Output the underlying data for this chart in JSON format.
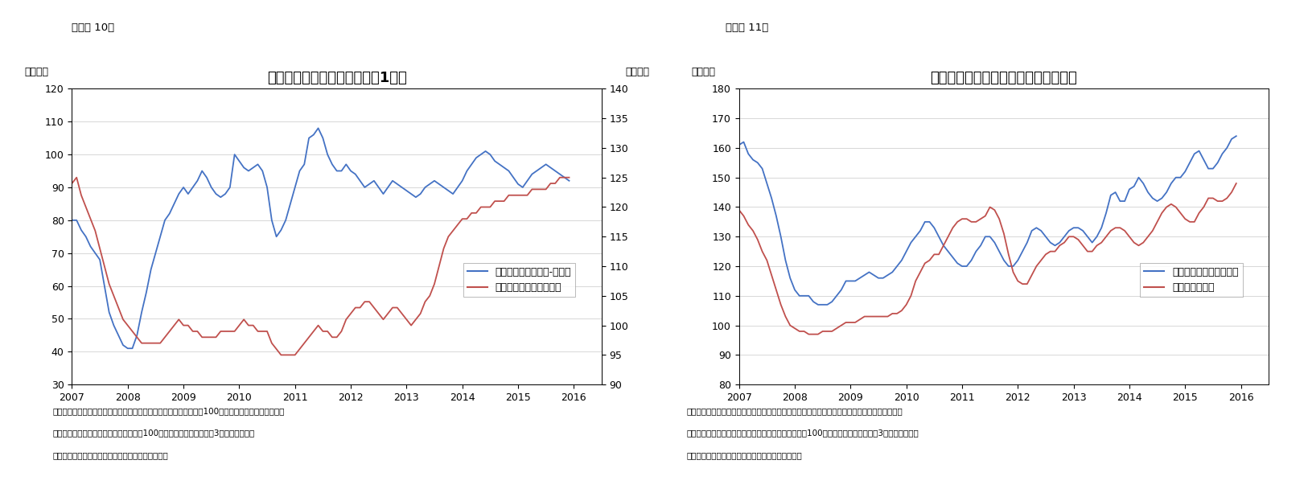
{
  "chart1": {
    "title": "失業者数および家計見通し（1年）",
    "subtitle": "（図表 10）",
    "ylabel_left": "（指数）",
    "ylabel_right": "（指数）",
    "ylim_left": [
      30,
      120
    ],
    "ylim_right": [
      90,
      140
    ],
    "yticks_left": [
      30,
      40,
      50,
      60,
      70,
      80,
      90,
      100,
      110,
      120
    ],
    "yticks_right": [
      90,
      95,
      100,
      105,
      110,
      115,
      120,
      125,
      130,
      135,
      140
    ],
    "note1": "（注）失業者数は「減少」との回答割合から「増加」割合を引いて100を加えた指数。家計も同様に",
    "note2": "　「良い」から「悪い」の割合を引いて100を加えた指数。いずれも3ヵ月移動平均。",
    "note3": "（資料）ミシガン大学よりニッセイ基礎研究所作成",
    "legend1": "失業者見通し（減少-増加）",
    "legend2": "家計状況見通し（右軸）",
    "color1": "#4472C4",
    "color2": "#C0504D",
    "unemployment": [
      80,
      80,
      77,
      75,
      72,
      70,
      68,
      60,
      52,
      48,
      45,
      42,
      41,
      41,
      45,
      52,
      58,
      65,
      70,
      75,
      80,
      82,
      85,
      88,
      90,
      88,
      90,
      92,
      95,
      93,
      90,
      88,
      87,
      88,
      90,
      100,
      98,
      96,
      95,
      96,
      97,
      95,
      90,
      80,
      75,
      77,
      80,
      85,
      90,
      95,
      97,
      105,
      106,
      108,
      105,
      100,
      97,
      95,
      95,
      97,
      95,
      94,
      92,
      90,
      91,
      92,
      90,
      88,
      90,
      92,
      91,
      90,
      89,
      88,
      87,
      88,
      90,
      91,
      92,
      91,
      90,
      89,
      88,
      90,
      92,
      95,
      97,
      99,
      100,
      101,
      100,
      98,
      97,
      96,
      95,
      93,
      91,
      90,
      92,
      94,
      95,
      96,
      97,
      96,
      95,
      94,
      93,
      92
    ],
    "household": [
      124,
      125,
      122,
      120,
      118,
      116,
      113,
      110,
      107,
      105,
      103,
      101,
      100,
      99,
      98,
      97,
      97,
      97,
      97,
      97,
      98,
      99,
      100,
      101,
      100,
      100,
      99,
      99,
      98,
      98,
      98,
      98,
      99,
      99,
      99,
      99,
      100,
      101,
      100,
      100,
      99,
      99,
      99,
      97,
      96,
      95,
      95,
      95,
      95,
      96,
      97,
      98,
      99,
      100,
      99,
      99,
      98,
      98,
      99,
      101,
      102,
      103,
      103,
      104,
      104,
      103,
      102,
      101,
      102,
      103,
      103,
      102,
      101,
      100,
      101,
      102,
      104,
      105,
      107,
      110,
      113,
      115,
      116,
      117,
      118,
      118,
      119,
      119,
      120,
      120,
      120,
      121,
      121,
      121,
      122,
      122,
      122,
      122,
      122,
      123,
      123,
      123,
      123,
      124,
      124,
      125,
      125,
      125
    ]
  },
  "chart2": {
    "title": "大型耗久消費財および自動車購入環境",
    "subtitle": "（図表 11）",
    "ylabel_left": "（指数）",
    "ylim_left": [
      80,
      180
    ],
    "yticks_left": [
      80,
      90,
      100,
      110,
      120,
      130,
      140,
      150,
      160,
      170,
      180
    ],
    "note1": "（注）大型消費財は、家具、テレビなど。大型耗久消費財、自動車ともに現在は購入時期として",
    "note2": "　「良い」との回答割合から「悪い」の割合を引いて100を加えた指数。いずれも3ヵ月移動平均。",
    "note3": "（資料）ミシガン大学よりニッセイ基礎研究所作成",
    "legend1": "大型耗久消費財購入環境",
    "legend2": "自動車購入環境",
    "color1": "#4472C4",
    "color2": "#C0504D",
    "durable": [
      161,
      162,
      158,
      156,
      155,
      153,
      148,
      143,
      137,
      130,
      122,
      116,
      112,
      110,
      110,
      110,
      108,
      107,
      107,
      107,
      108,
      110,
      112,
      115,
      115,
      115,
      116,
      117,
      118,
      117,
      116,
      116,
      117,
      118,
      120,
      122,
      125,
      128,
      130,
      132,
      135,
      135,
      133,
      130,
      127,
      125,
      123,
      121,
      120,
      120,
      122,
      125,
      127,
      130,
      130,
      128,
      125,
      122,
      120,
      120,
      122,
      125,
      128,
      132,
      133,
      132,
      130,
      128,
      127,
      128,
      130,
      132,
      133,
      133,
      132,
      130,
      128,
      130,
      133,
      138,
      144,
      145,
      142,
      142,
      146,
      147,
      150,
      148,
      145,
      143,
      142,
      143,
      145,
      148,
      150,
      150,
      152,
      155,
      158,
      159,
      156,
      153,
      153,
      155,
      158,
      160,
      163,
      164
    ],
    "auto": [
      139,
      137,
      134,
      132,
      129,
      125,
      122,
      117,
      112,
      107,
      103,
      100,
      99,
      98,
      98,
      97,
      97,
      97,
      98,
      98,
      98,
      99,
      100,
      101,
      101,
      101,
      102,
      103,
      103,
      103,
      103,
      103,
      103,
      104,
      104,
      105,
      107,
      110,
      115,
      118,
      121,
      122,
      124,
      124,
      127,
      130,
      133,
      135,
      136,
      136,
      135,
      135,
      136,
      137,
      140,
      139,
      136,
      131,
      124,
      118,
      115,
      114,
      114,
      117,
      120,
      122,
      124,
      125,
      125,
      127,
      128,
      130,
      130,
      129,
      127,
      125,
      125,
      127,
      128,
      130,
      132,
      133,
      133,
      132,
      130,
      128,
      127,
      128,
      130,
      132,
      135,
      138,
      140,
      141,
      140,
      138,
      136,
      135,
      135,
      138,
      140,
      143,
      143,
      142,
      142,
      143,
      145,
      148
    ]
  },
  "x_years": [
    2007,
    2008,
    2009,
    2010,
    2011,
    2012,
    2013,
    2014,
    2015,
    2016
  ],
  "n_points": 108,
  "start_year": 2007,
  "background_color": "#FFFFFF",
  "grid_color": "#C8C8C8",
  "title_fontsize": 13,
  "label_fontsize": 9,
  "note_fontsize": 7.5
}
